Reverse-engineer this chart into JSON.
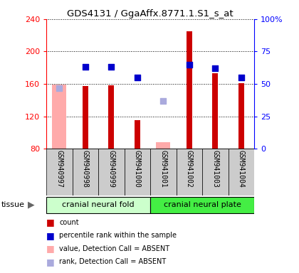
{
  "title": "GDS4131 / GgaAffx.8771.1.S1_s_at",
  "samples": [
    "GSM940997",
    "GSM940998",
    "GSM940999",
    "GSM941000",
    "GSM941001",
    "GSM941002",
    "GSM941003",
    "GSM941004"
  ],
  "count_values": [
    null,
    157,
    158,
    115,
    null,
    225,
    173,
    161
  ],
  "count_absent": [
    159,
    null,
    null,
    null,
    88,
    null,
    null,
    null
  ],
  "rank_values": [
    null,
    63,
    63,
    55,
    null,
    65,
    62,
    55
  ],
  "rank_absent": [
    47,
    null,
    null,
    null,
    37,
    null,
    null,
    null
  ],
  "ylim_left": [
    80,
    240
  ],
  "ylim_right": [
    0,
    100
  ],
  "yticks_left": [
    80,
    120,
    160,
    200,
    240
  ],
  "yticks_right": [
    0,
    25,
    50,
    75,
    100
  ],
  "ytick_labels_right": [
    "0",
    "25",
    "50",
    "75",
    "100%"
  ],
  "bar_color": "#cc0000",
  "bar_absent_color": "#ffaaaa",
  "dot_color": "#0000cc",
  "dot_absent_color": "#aaaadd",
  "group1_label": "cranial neural fold",
  "group2_label": "cranial neural plate",
  "group1_indices": [
    0,
    1,
    2,
    3
  ],
  "group2_indices": [
    4,
    5,
    6,
    7
  ],
  "group1_bg": "#ccffcc",
  "group2_bg": "#44ee44",
  "xlabel_bg": "#cccccc",
  "tissue_label": "tissue",
  "legend_items": [
    {
      "label": "count",
      "color": "#cc0000"
    },
    {
      "label": "percentile rank within the sample",
      "color": "#0000cc"
    },
    {
      "label": "value, Detection Call = ABSENT",
      "color": "#ffaaaa"
    },
    {
      "label": "rank, Detection Call = ABSENT",
      "color": "#aaaadd"
    }
  ]
}
